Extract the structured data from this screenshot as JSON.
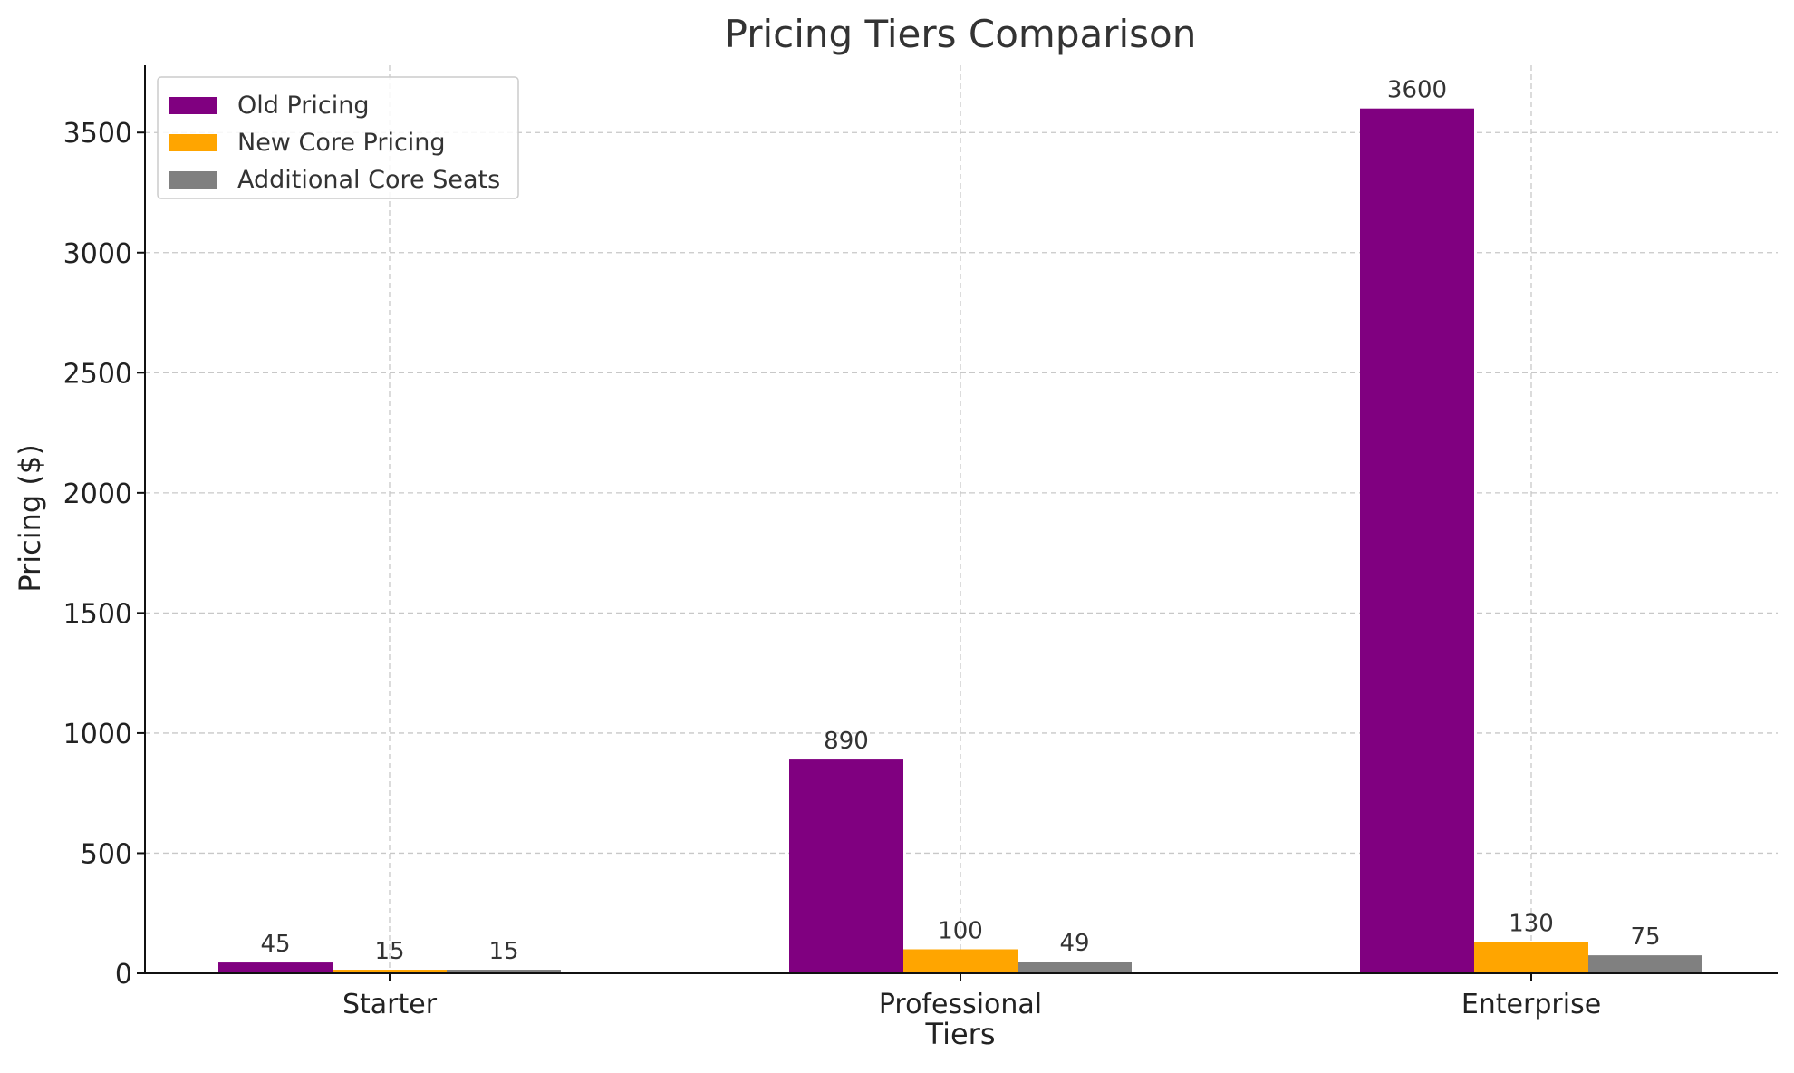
{
  "chart_data": {
    "type": "bar",
    "title": "Pricing Tiers Comparison",
    "xlabel": "Tiers",
    "ylabel": "Pricing ($)",
    "categories": [
      "Starter",
      "Professional",
      "Enterprise"
    ],
    "series": [
      {
        "name": "Old Pricing",
        "values": [
          45,
          890,
          3600
        ],
        "color": "#800080"
      },
      {
        "name": "New Core Pricing",
        "values": [
          15,
          100,
          130
        ],
        "color": "#FFA500"
      },
      {
        "name": "Additional Core Seats",
        "values": [
          15,
          49,
          75
        ],
        "color": "#808080"
      }
    ],
    "ylim": [
      0,
      3780
    ],
    "yticks": [
      0,
      500,
      1000,
      1500,
      2000,
      2500,
      3000,
      3500
    ],
    "grid": true,
    "legend_position": "top-left"
  }
}
